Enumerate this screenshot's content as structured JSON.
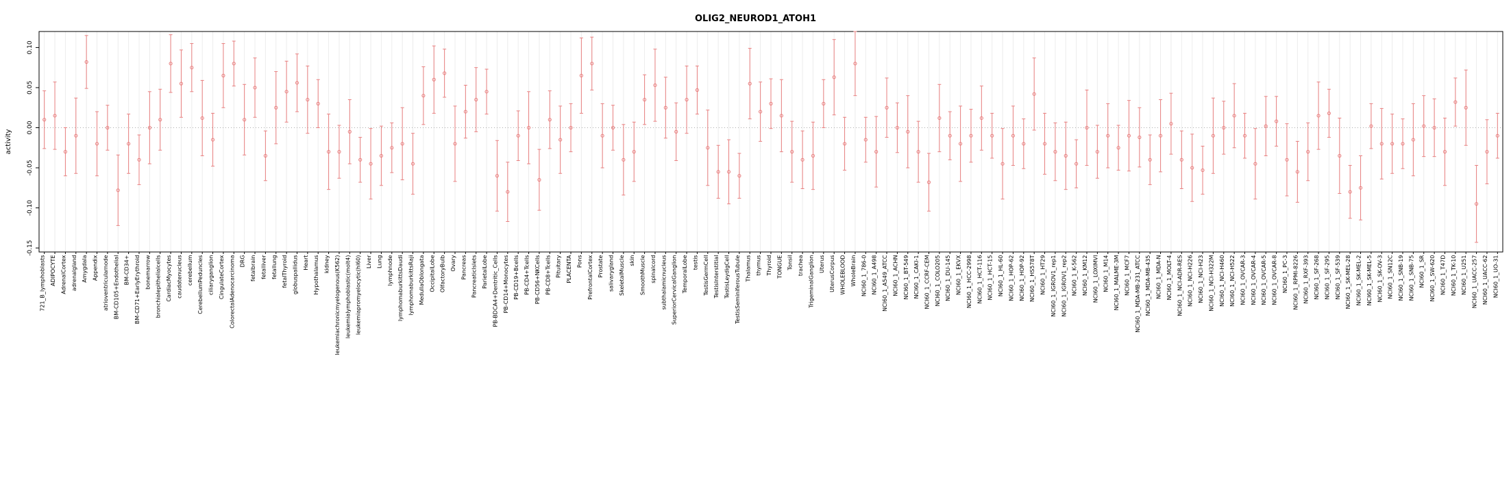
{
  "chart_data": {
    "type": "scatter",
    "subtype": "errorbar",
    "title": "OLIG2_NEUROD1_ATOH1",
    "ylabel": "activity",
    "xlabel": "",
    "ylim": [
      -0.155,
      0.12
    ],
    "yticks": [
      -0.15,
      -0.1,
      -0.05,
      0.0,
      0.05,
      0.1
    ],
    "grid": "vertical-light",
    "zero_line": "dotted",
    "point_color": "#e87f7f",
    "grid_color": "#ececec",
    "axis_color": "#000000",
    "categories": [
      "721_B_lymphoblasts",
      "ADIPOCYTE",
      "AdrenalCortex",
      "adrenalgland",
      "Amygdala",
      "Appendix",
      "atrioventricularnode",
      "BM-CD105+Endothelial",
      "BM-CD34+",
      "BM-CD71+EarlyErythroid",
      "bonemarrow",
      "bronchialepithelialcells",
      "CardiacMyocytes",
      "caudatenucleus",
      "cerebellum",
      "CerebellumPeduncles",
      "ciliaryganglion",
      "CingulateCortex",
      "ColorectalAdenocarcinoma",
      "DRG",
      "fetalbrain",
      "fetalliver",
      "fetallung",
      "fetalThyroid",
      "globuspallidus",
      "Heart",
      "Hypothalamus",
      "kidney",
      "leukemiachronicmyelogenous(K562)",
      "leukemialymphoblastic(molt4)",
      "leukemiapromyelocytic(hl60)",
      "Liver",
      "Lung",
      "lymphnode",
      "lymphomaburkittsDaudi",
      "lymphomaburkittsRaji",
      "MedullaOblongata",
      "OccipitalLobe",
      "OlfactoryBulb",
      "Ovary",
      "Pancreas",
      "PancreaticIslets",
      "ParietalLobe",
      "PB-BDCA4+Dentritic_Cells",
      "PB-CD14+Monocytes",
      "PB-CD19+Bcells",
      "PB-CD4+Tcells",
      "PB-CD56+NKCells",
      "PB-CD8+Tcells",
      "Pituitary",
      "PLACENTA",
      "Pons",
      "PrefrontalCortex",
      "Prostate",
      "salivarygland",
      "SkeletalMuscle",
      "skin",
      "SmoothMuscle",
      "spinalcord",
      "subthalamicnucleus",
      "SuperiorCervicalGanglion",
      "TemporalLobe",
      "testis",
      "TestisGermCell",
      "TestisInterstitial",
      "TestisLeydigCell",
      "TestisSeminiferousTubule",
      "Thalamus",
      "thymus",
      "Thyroid",
      "TONGUE",
      "Tonsil",
      "trachea",
      "TrigeminalGanglion",
      "Uterus",
      "UterusCorpus",
      "WHOLEBLOOD",
      "WholeBrain",
      "NCI60_1_786-0",
      "NCI60_1_A498",
      "NCI60_1_A549_ATCC",
      "NCI60_1_ACHN",
      "NCI60_1_BT-549",
      "NCI60_1_CAKI-1",
      "NCI60_1_CCRF-CEM",
      "NCI60_1_COLO205",
      "NCI60_1_DU-145",
      "NCI60_1_EKVX",
      "NCI60_1_HCC-2998",
      "NCI60_1_HCT-116",
      "NCI60_1_HCT-15",
      "NCI60_1_HL-60",
      "NCI60_1_HOP-62",
      "NCI60_1_HOP-92",
      "NCI60_1_HS578T",
      "NCI60_1_HT29",
      "NCI60_1_IGROV1_rep1",
      "NCI60_1_IGROV1_rep2",
      "NCI60_1_K-562",
      "NCI60_1_KM12",
      "NCI60_1_LOXIMVI",
      "NCI60_1_M14",
      "NCI60_1_MALME-3M",
      "NCI60_1_MCF7",
      "NCI60_1_MDA-MB-231_ATCC",
      "NCI60_1_MDA-MB-435",
      "NCI60_1_MDA-N",
      "NCI60_1_MOLT-4",
      "NCI60_1_NCI-ADR-RES",
      "NCI60_1_NCI-H226",
      "NCI60_1_NCI-H23",
      "NCI60_1_NCI-H322M",
      "NCI60_1_NCI-H460",
      "NCI60_1_NCI-H522",
      "NCI60_1_OVCAR-3",
      "NCI60_1_OVCAR-4",
      "NCI60_1_OVCAR-5",
      "NCI60_1_OVCAR-8",
      "NCI60_1_PC-3",
      "NCI60_1_RPMI-8226",
      "NCI60_1_RXF-393",
      "NCI60_1_SF-268",
      "NCI60_1_SF-295",
      "NCI60_1_SF-539",
      "NCI60_1_SK-MEL-28",
      "NCI60_1_SK-MEL-2",
      "NCI60_1_SK-MEL-5",
      "NCI60_1_SK-OV-3",
      "NCI60_1_SN12C",
      "NCI60_1_SNB-19",
      "NCI60_1_SNB-75",
      "NCI60_1_SR",
      "NCI60_1_SW-620",
      "NCI60_1_T47D",
      "NCI60_1_TK-10",
      "NCI60_1_U251",
      "NCI60_1_UACC-257",
      "NCI60_1_UACC-62",
      "NCI60_1_UO-31"
    ],
    "values": [
      0.01,
      0.015,
      -0.03,
      -0.01,
      0.082,
      -0.02,
      0.0,
      -0.078,
      -0.02,
      -0.04,
      0.0,
      0.01,
      0.08,
      0.055,
      0.075,
      0.012,
      -0.015,
      0.065,
      0.08,
      0.01,
      0.05,
      -0.035,
      0.025,
      0.045,
      0.056,
      0.035,
      0.03,
      -0.03,
      -0.03,
      -0.005,
      -0.04,
      -0.045,
      -0.035,
      -0.025,
      -0.02,
      -0.045,
      0.04,
      0.06,
      0.068,
      -0.02,
      0.02,
      0.035,
      0.045,
      -0.06,
      -0.08,
      -0.01,
      0.0,
      -0.065,
      0.01,
      -0.015,
      0.0,
      0.065,
      0.08,
      -0.01,
      0.0,
      -0.04,
      -0.03,
      0.035,
      0.053,
      0.025,
      -0.005,
      0.035,
      0.047,
      -0.025,
      -0.055,
      -0.055,
      -0.06,
      0.055,
      0.02,
      0.03,
      0.015,
      -0.03,
      -0.04,
      -0.035,
      0.03,
      0.063,
      -0.02,
      0.08,
      -0.015,
      -0.03,
      0.025,
      0.0,
      -0.005,
      -0.03,
      -0.068,
      0.012,
      -0.01,
      -0.02,
      -0.01,
      0.012,
      -0.01,
      -0.045,
      -0.01,
      -0.02,
      0.042,
      -0.02,
      -0.03,
      -0.035,
      -0.045,
      0.0,
      -0.03,
      -0.01,
      -0.025,
      -0.01,
      -0.012,
      -0.04,
      -0.01,
      0.005,
      -0.04,
      -0.05,
      -0.053,
      -0.01,
      0.0,
      0.015,
      -0.01,
      -0.045,
      0.002,
      0.008,
      -0.04,
      -0.055,
      -0.03,
      0.015,
      0.018,
      -0.035,
      -0.08,
      -0.075,
      0.002,
      -0.02,
      -0.02,
      -0.02,
      -0.015,
      0.002,
      0.0,
      -0.03,
      0.032,
      0.025,
      -0.095,
      -0.03,
      -0.01
    ],
    "errors": [
      0.036,
      0.042,
      0.03,
      0.047,
      0.033,
      0.04,
      0.028,
      0.044,
      0.037,
      0.031,
      0.045,
      0.038,
      0.036,
      0.042,
      0.03,
      0.047,
      0.033,
      0.04,
      0.028,
      0.044,
      0.037,
      0.031,
      0.045,
      0.038,
      0.036,
      0.042,
      0.03,
      0.047,
      0.033,
      0.04,
      0.028,
      0.044,
      0.037,
      0.031,
      0.045,
      0.038,
      0.036,
      0.042,
      0.03,
      0.047,
      0.033,
      0.04,
      0.028,
      0.044,
      0.037,
      0.031,
      0.045,
      0.038,
      0.036,
      0.042,
      0.03,
      0.047,
      0.033,
      0.04,
      0.028,
      0.044,
      0.037,
      0.031,
      0.045,
      0.038,
      0.036,
      0.042,
      0.03,
      0.047,
      0.033,
      0.04,
      0.028,
      0.044,
      0.037,
      0.031,
      0.045,
      0.038,
      0.036,
      0.042,
      0.03,
      0.047,
      0.033,
      0.04,
      0.028,
      0.044,
      0.037,
      0.031,
      0.045,
      0.038,
      0.036,
      0.042,
      0.03,
      0.047,
      0.033,
      0.04,
      0.028,
      0.044,
      0.037,
      0.031,
      0.045,
      0.038,
      0.036,
      0.042,
      0.03,
      0.047,
      0.033,
      0.04,
      0.028,
      0.044,
      0.037,
      0.031,
      0.045,
      0.038,
      0.036,
      0.042,
      0.03,
      0.047,
      0.033,
      0.04,
      0.028,
      0.044,
      0.037,
      0.031,
      0.045,
      0.038,
      0.036,
      0.042,
      0.03,
      0.047,
      0.033,
      0.04,
      0.028,
      0.044,
      0.037,
      0.031,
      0.045,
      0.038,
      0.036,
      0.042,
      0.03,
      0.047,
      0.048,
      0.04,
      0.028
    ]
  }
}
